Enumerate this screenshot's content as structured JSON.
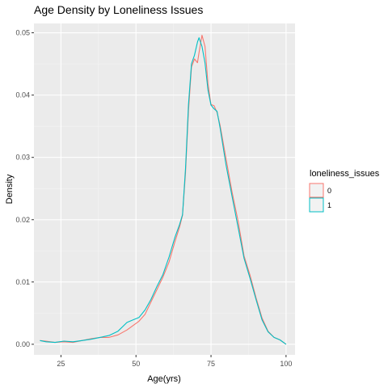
{
  "chart_data": {
    "type": "line",
    "title": "Age Density by Loneliness Issues",
    "xlabel": "Age(yrs)",
    "ylabel": "Density",
    "xlim": [
      16,
      103
    ],
    "ylim": [
      -0.0017,
      0.0515
    ],
    "x_ticks": [
      25,
      50,
      75,
      100
    ],
    "x_tick_labels": [
      "25",
      "50",
      "75",
      "100"
    ],
    "y_ticks": [
      0,
      0.01,
      0.02,
      0.03,
      0.04,
      0.05
    ],
    "y_tick_labels": [
      "0.00",
      "0.01",
      "0.02",
      "0.03",
      "0.04",
      "0.05"
    ],
    "grid": true,
    "legend": {
      "title": "loneliness_issues",
      "position": "right"
    },
    "series": [
      {
        "name": "0",
        "color": "#F8766D",
        "x": [
          18,
          20,
          23,
          26,
          29,
          32,
          35,
          38,
          41,
          44,
          47,
          49,
          51,
          53,
          55,
          57,
          59,
          61,
          63,
          64.5,
          65.5,
          66.5,
          67.5,
          68.5,
          69.5,
          70.5,
          71,
          72,
          73,
          74,
          75,
          76,
          77,
          78,
          80,
          82,
          84,
          86,
          88,
          90,
          92,
          94,
          96,
          98,
          100
        ],
        "values": [
          0.0006,
          0.0005,
          0.0003,
          0.0004,
          0.0003,
          0.0006,
          0.0009,
          0.0011,
          0.0011,
          0.0015,
          0.0023,
          0.003,
          0.0037,
          0.0048,
          0.0068,
          0.0088,
          0.0108,
          0.0132,
          0.0165,
          0.0188,
          0.0207,
          0.0275,
          0.0375,
          0.0445,
          0.0458,
          0.0452,
          0.0468,
          0.0496,
          0.0478,
          0.0418,
          0.0385,
          0.0383,
          0.0372,
          0.0352,
          0.0298,
          0.0245,
          0.0198,
          0.0142,
          0.0111,
          0.0075,
          0.0042,
          0.0021,
          0.0011,
          0.0007,
          0.0
        ]
      },
      {
        "name": "1",
        "color": "#00BFC4",
        "x": [
          18,
          20,
          23,
          26,
          29,
          32,
          35,
          38,
          41,
          44,
          47,
          49,
          51,
          53,
          55,
          57,
          59,
          61,
          63,
          64.5,
          65.5,
          66.5,
          67.5,
          68.5,
          69.5,
          70.5,
          71,
          72,
          73,
          74,
          75,
          76,
          77,
          78,
          80,
          82,
          84,
          86,
          88,
          90,
          92,
          94,
          96,
          98,
          100
        ],
        "values": [
          0.0006,
          0.0004,
          0.0003,
          0.0005,
          0.0004,
          0.0006,
          0.0008,
          0.0011,
          0.0014,
          0.0021,
          0.0035,
          0.0039,
          0.0043,
          0.0055,
          0.0072,
          0.0093,
          0.0112,
          0.014,
          0.0172,
          0.0192,
          0.0208,
          0.0282,
          0.0385,
          0.045,
          0.0464,
          0.0485,
          0.0492,
          0.0478,
          0.0452,
          0.0408,
          0.0384,
          0.0378,
          0.0374,
          0.0348,
          0.0288,
          0.0238,
          0.0188,
          0.0138,
          0.0106,
          0.0072,
          0.0039,
          0.002,
          0.0011,
          0.0007,
          0.0
        ]
      }
    ]
  }
}
